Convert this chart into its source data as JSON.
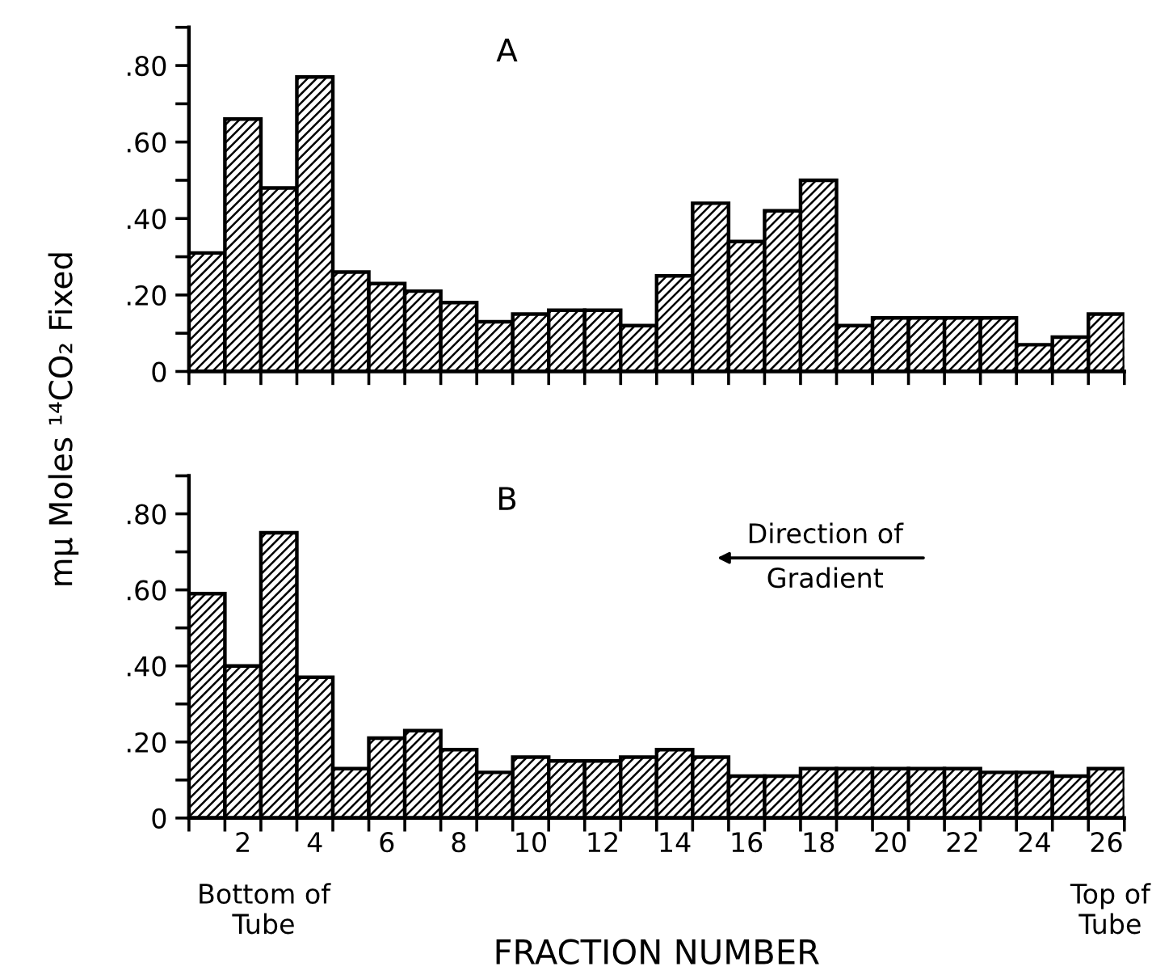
{
  "chart_data": [
    {
      "type": "histogram",
      "title": "A",
      "ylabel": "mμ Moles ¹⁴CO₂ Fixed",
      "bins": [
        0.5,
        1.5,
        2.5,
        3.5,
        4.5,
        5.5,
        6.5,
        7.5,
        8.5,
        9.5,
        10.5,
        11.5,
        12.5,
        13.5,
        14.5,
        15.5,
        16.5,
        17.5,
        18.5,
        19.5,
        20.5,
        21.5,
        22.5,
        23.5,
        24.5,
        25.5,
        26.5
      ],
      "values": [
        0.31,
        0.66,
        0.48,
        0.77,
        0.26,
        0.23,
        0.21,
        0.18,
        0.13,
        0.15,
        0.16,
        0.16,
        0.12,
        0.25,
        0.44,
        0.34,
        0.42,
        0.5,
        0.12,
        0.14,
        0.14,
        0.14,
        0.14,
        0.07,
        0.09,
        0.15
      ],
      "color": "#000000",
      "xlim": [
        0.5,
        26.5
      ],
      "xticks": [
        {
          "value": 0.5,
          "label": null
        },
        {
          "value": 1.5,
          "label": null
        },
        {
          "value": 2.5,
          "label": null
        },
        {
          "value": 3.5,
          "label": null
        },
        {
          "value": 4.5,
          "label": null
        },
        {
          "value": 5.5,
          "label": null
        },
        {
          "value": 6.5,
          "label": null
        },
        {
          "value": 7.5,
          "label": null
        },
        {
          "value": 8.5,
          "label": null
        },
        {
          "value": 9.5,
          "label": null
        },
        {
          "value": 10.5,
          "label": null
        },
        {
          "value": 11.5,
          "label": null
        },
        {
          "value": 12.5,
          "label": null
        },
        {
          "value": 13.5,
          "label": null
        },
        {
          "value": 14.5,
          "label": null
        },
        {
          "value": 15.5,
          "label": null
        },
        {
          "value": 16.5,
          "label": null
        },
        {
          "value": 17.5,
          "label": null
        },
        {
          "value": 18.5,
          "label": null
        },
        {
          "value": 19.5,
          "label": null
        },
        {
          "value": 20.5,
          "label": null
        },
        {
          "value": 21.5,
          "label": null
        },
        {
          "value": 22.5,
          "label": null
        },
        {
          "value": 23.5,
          "label": null
        },
        {
          "value": 24.5,
          "label": null
        },
        {
          "value": 25.5,
          "label": null
        },
        {
          "value": 26.5,
          "label": null
        }
      ],
      "ylim": [
        0,
        0.9
      ],
      "yticks": [
        {
          "value": 0,
          "label": "0"
        },
        {
          "value": 0.1,
          "label": null
        },
        {
          "value": 0.2,
          "label": ".20"
        },
        {
          "value": 0.3,
          "label": null
        },
        {
          "value": 0.4,
          "label": ".40"
        },
        {
          "value": 0.5,
          "label": null
        },
        {
          "value": 0.6,
          "label": ".60"
        },
        {
          "value": 0.7,
          "label": null
        },
        {
          "value": 0.8,
          "label": ".80"
        },
        {
          "value": 0.9,
          "label": null
        }
      ],
      "tick_labels": "y"
    },
    {
      "type": "histogram",
      "title": "B",
      "xlabel": "FRACTION NUMBER",
      "annotations": [
        "Direction of\nGradient",
        "Bottom of\nTube",
        "Top of\nTube"
      ],
      "bins": [
        0.5,
        1.5,
        2.5,
        3.5,
        4.5,
        5.5,
        6.5,
        7.5,
        8.5,
        9.5,
        10.5,
        11.5,
        12.5,
        13.5,
        14.5,
        15.5,
        16.5,
        17.5,
        18.5,
        19.5,
        20.5,
        21.5,
        22.5,
        23.5,
        24.5,
        25.5,
        26.5
      ],
      "values": [
        0.59,
        0.4,
        0.75,
        0.37,
        0.13,
        0.21,
        0.23,
        0.18,
        0.12,
        0.16,
        0.15,
        0.15,
        0.16,
        0.18,
        0.16,
        0.11,
        0.11,
        0.13,
        0.13,
        0.13,
        0.13,
        0.13,
        0.12,
        0.12,
        0.11,
        0.13
      ],
      "color": "#000000",
      "xlim": [
        0.5,
        26.5
      ],
      "xticks": [
        {
          "value": 0.5,
          "label": null
        },
        {
          "value": 1.5,
          "label": null
        },
        {
          "value": 2,
          "label": "2"
        },
        {
          "value": 2.5,
          "label": null
        },
        {
          "value": 3.5,
          "label": null
        },
        {
          "value": 4,
          "label": "4"
        },
        {
          "value": 4.5,
          "label": null
        },
        {
          "value": 5.5,
          "label": null
        },
        {
          "value": 6,
          "label": "6"
        },
        {
          "value": 6.5,
          "label": null
        },
        {
          "value": 7.5,
          "label": null
        },
        {
          "value": 8,
          "label": "8"
        },
        {
          "value": 8.5,
          "label": null
        },
        {
          "value": 9.5,
          "label": null
        },
        {
          "value": 10,
          "label": "10"
        },
        {
          "value": 10.5,
          "label": null
        },
        {
          "value": 11.5,
          "label": null
        },
        {
          "value": 12,
          "label": "12"
        },
        {
          "value": 12.5,
          "label": null
        },
        {
          "value": 13.5,
          "label": null
        },
        {
          "value": 14,
          "label": "14"
        },
        {
          "value": 14.5,
          "label": null
        },
        {
          "value": 15.5,
          "label": null
        },
        {
          "value": 16,
          "label": "16"
        },
        {
          "value": 16.5,
          "label": null
        },
        {
          "value": 17.5,
          "label": null
        },
        {
          "value": 18,
          "label": "18"
        },
        {
          "value": 18.5,
          "label": null
        },
        {
          "value": 19.5,
          "label": null
        },
        {
          "value": 20,
          "label": "20"
        },
        {
          "value": 20.5,
          "label": null
        },
        {
          "value": 21.5,
          "label": null
        },
        {
          "value": 22,
          "label": "22"
        },
        {
          "value": 22.5,
          "label": null
        },
        {
          "value": 23.5,
          "label": null
        },
        {
          "value": 24,
          "label": "24"
        },
        {
          "value": 24.5,
          "label": null
        },
        {
          "value": 25.5,
          "label": null
        },
        {
          "value": 26,
          "label": "26"
        },
        {
          "value": 26.5,
          "label": null
        }
      ],
      "ylim": [
        0,
        0.9
      ],
      "yticks": [
        {
          "value": 0,
          "label": "0"
        },
        {
          "value": 0.1,
          "label": null
        },
        {
          "value": 0.2,
          "label": ".20"
        },
        {
          "value": 0.3,
          "label": null
        },
        {
          "value": 0.4,
          "label": ".40"
        },
        {
          "value": 0.5,
          "label": null
        },
        {
          "value": 0.6,
          "label": ".60"
        },
        {
          "value": 0.7,
          "label": null
        },
        {
          "value": 0.8,
          "label": ".80"
        },
        {
          "value": 0.9,
          "label": null
        }
      ]
    }
  ]
}
